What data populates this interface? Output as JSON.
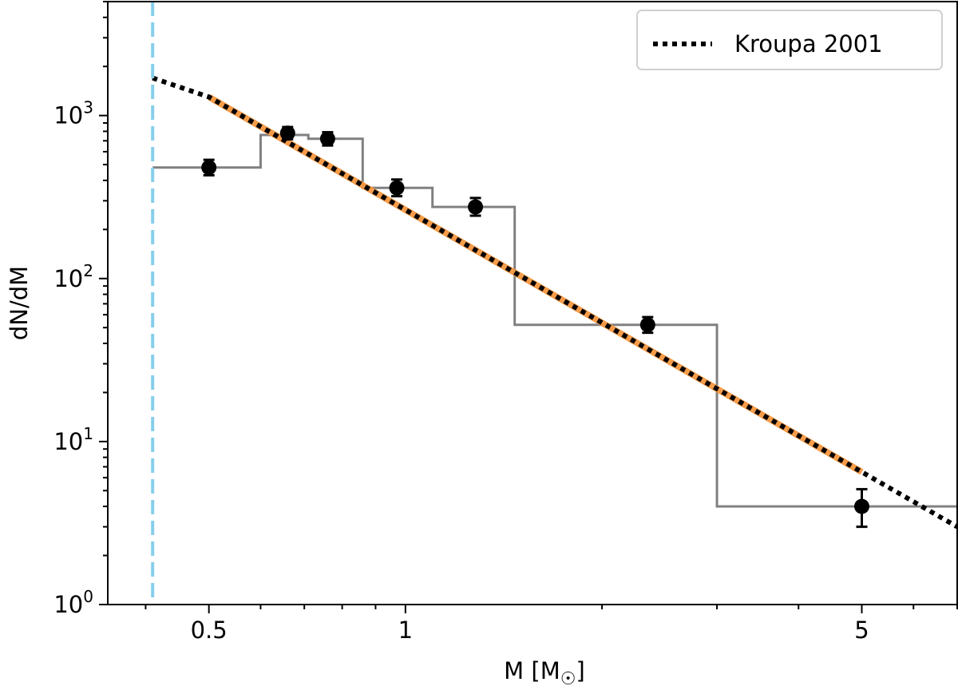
{
  "chart_data": {
    "type": "scatter",
    "xlabel": "M [M",
    "xlabel_symbol": "☉",
    "xlabel_suffix": "]",
    "ylabel": "dN/dM",
    "xscale": "log",
    "yscale": "log",
    "xlim": [
      0.35,
      7.0
    ],
    "ylim": [
      1,
      5000
    ],
    "x_ticks": [
      {
        "value": 0.5,
        "label": "0.5"
      },
      {
        "value": 1,
        "label": "1"
      },
      {
        "value": 5,
        "label": "5"
      }
    ],
    "y_ticks": [
      {
        "value": 1,
        "base": "10",
        "exp": "0"
      },
      {
        "value": 10,
        "base": "10",
        "exp": "1"
      },
      {
        "value": 100,
        "base": "10",
        "exp": "2"
      },
      {
        "value": 1000,
        "base": "10",
        "exp": "3"
      }
    ],
    "legend": {
      "location": "upper right",
      "entries": [
        {
          "label": "Kroupa 2001",
          "style": "dotted",
          "color": "#000000"
        }
      ]
    },
    "series": [
      {
        "kind": "scatter_errorbar",
        "color": "#000000",
        "points": [
          {
            "x": 0.5,
            "y": 480,
            "ylo": 430,
            "yhi": 535
          },
          {
            "x": 0.66,
            "y": 780,
            "ylo": 715,
            "yhi": 850
          },
          {
            "x": 0.76,
            "y": 720,
            "ylo": 655,
            "yhi": 790
          },
          {
            "x": 0.97,
            "y": 360,
            "ylo": 320,
            "yhi": 405
          },
          {
            "x": 1.28,
            "y": 275,
            "ylo": 243,
            "yhi": 312
          },
          {
            "x": 2.35,
            "y": 52,
            "ylo": 46.5,
            "yhi": 58
          },
          {
            "x": 5.0,
            "y": 4.0,
            "ylo": 3.0,
            "yhi": 5.1
          }
        ]
      },
      {
        "kind": "step_histogram",
        "color": "#808080",
        "edges": [
          0.41,
          0.6,
          0.71,
          0.86,
          1.1,
          1.47,
          3.0,
          7.0
        ],
        "values": [
          480,
          760,
          720,
          360,
          275,
          52,
          4.0
        ]
      },
      {
        "kind": "line",
        "style": "dotted",
        "color": "#000000",
        "points": [
          {
            "x": 0.41,
            "y": 1700
          },
          {
            "x": 0.5,
            "y": 1300
          },
          {
            "x": 7.0,
            "y": 3.0
          }
        ]
      },
      {
        "kind": "line",
        "style": "solid",
        "color": "#f5973f",
        "points": [
          {
            "x": 0.5,
            "y": 1300
          },
          {
            "x": 5.0,
            "y": 6.5
          }
        ]
      },
      {
        "kind": "vline",
        "style": "dashed",
        "color": "#87ceeb",
        "x": 0.41
      }
    ]
  }
}
